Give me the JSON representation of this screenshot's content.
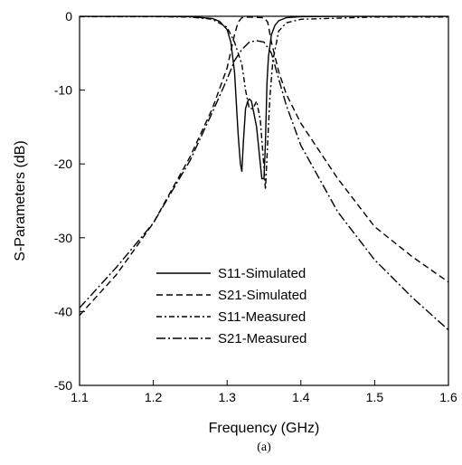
{
  "chart_data": {
    "type": "line",
    "xlabel": "Frequency (GHz)",
    "ylabel": "S-Parameters (dB)",
    "caption": "(a)",
    "xlim": [
      1.1,
      1.6
    ],
    "ylim": [
      -50,
      0
    ],
    "xticks": [
      1.1,
      1.2,
      1.3,
      1.4,
      1.5,
      1.6
    ],
    "xtick_labels": [
      "1.1",
      "1.2",
      "1.3",
      "1.4",
      "1.5",
      "1.6"
    ],
    "yticks": [
      0,
      -10,
      -20,
      -30,
      -40,
      -50
    ],
    "ytick_labels": [
      "0",
      "-10",
      "-20",
      "-30",
      "-40",
      "-50"
    ],
    "grid": false,
    "legend_position": "bottom-center",
    "series": [
      {
        "name": "S11-Simulated",
        "dash": "solid",
        "color": "#000000",
        "x": [
          1.1,
          1.2,
          1.25,
          1.28,
          1.29,
          1.3,
          1.305,
          1.31,
          1.315,
          1.318,
          1.32,
          1.322,
          1.325,
          1.328,
          1.33,
          1.333,
          1.336,
          1.34,
          1.344,
          1.347,
          1.35,
          1.352,
          1.354,
          1.356,
          1.36,
          1.365,
          1.37,
          1.38,
          1.4,
          1.45,
          1.5,
          1.6
        ],
        "y": [
          0,
          0,
          -0.05,
          -0.3,
          -0.7,
          -1.8,
          -3.5,
          -7.5,
          -16,
          -20,
          -21,
          -17,
          -12.5,
          -11.5,
          -11.2,
          -11.5,
          -13,
          -15,
          -19,
          -22,
          -22,
          -17,
          -9,
          -5.5,
          -2.5,
          -1.2,
          -0.6,
          -0.2,
          -0.05,
          0,
          0,
          0
        ]
      },
      {
        "name": "S21-Simulated",
        "dash": "dashed",
        "color": "#000000",
        "x": [
          1.1,
          1.15,
          1.2,
          1.25,
          1.28,
          1.3,
          1.31,
          1.315,
          1.32,
          1.33,
          1.34,
          1.35,
          1.355,
          1.36,
          1.37,
          1.38,
          1.4,
          1.45,
          1.5,
          1.55,
          1.6
        ],
        "y": [
          -40.5,
          -35,
          -28,
          -19,
          -12.5,
          -7,
          -2.5,
          -0.8,
          -0.2,
          -0.1,
          -0.15,
          -0.2,
          -0.8,
          -3.5,
          -7.5,
          -10.5,
          -14.5,
          -22,
          -28.5,
          -32.5,
          -36
        ]
      },
      {
        "name": "S11-Measured",
        "dash": "6,3,2,3",
        "color": "#000000",
        "x": [
          1.1,
          1.2,
          1.25,
          1.28,
          1.3,
          1.31,
          1.32,
          1.325,
          1.33,
          1.335,
          1.34,
          1.345,
          1.35,
          1.352,
          1.355,
          1.358,
          1.362,
          1.37,
          1.38,
          1.4,
          1.5,
          1.6
        ],
        "y": [
          -0.05,
          -0.05,
          -0.1,
          -0.4,
          -1.5,
          -3.5,
          -6.5,
          -10,
          -12.5,
          -12.5,
          -11.5,
          -14,
          -20.5,
          -23.5,
          -17,
          -11,
          -6,
          -2,
          -0.9,
          -0.4,
          -0.1,
          -0.1
        ]
      },
      {
        "name": "S21-Measured",
        "dash": "10,3,2,3",
        "color": "#000000",
        "x": [
          1.1,
          1.15,
          1.2,
          1.25,
          1.28,
          1.3,
          1.31,
          1.32,
          1.33,
          1.34,
          1.35,
          1.36,
          1.37,
          1.38,
          1.4,
          1.45,
          1.5,
          1.55,
          1.6
        ],
        "y": [
          -39.5,
          -34,
          -28,
          -19.5,
          -13,
          -8.5,
          -6,
          -4.5,
          -3.5,
          -3.3,
          -3.5,
          -5,
          -8.5,
          -12,
          -17.5,
          -26.5,
          -33,
          -38,
          -42.5
        ]
      }
    ]
  }
}
